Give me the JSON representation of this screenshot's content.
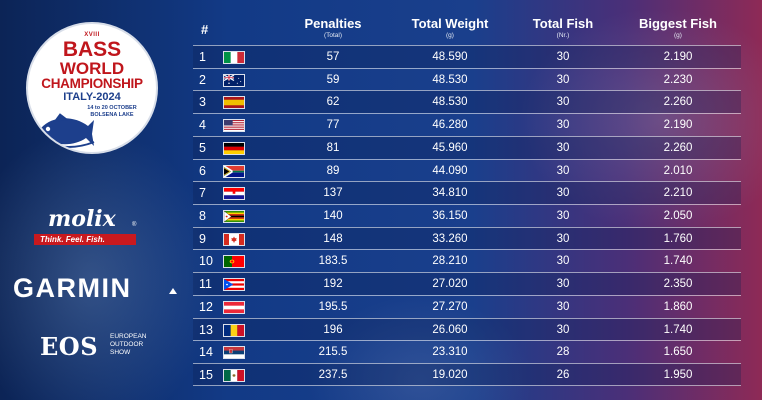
{
  "event": {
    "edition": "XVIII",
    "title_line1": "BASS",
    "title_line2": "WORLD",
    "title_line3": "CHAMPIONSHIP",
    "title_line4": "ITALY-2024",
    "dates": "14 to 20 OCTOBER",
    "venue": "BOLSENA LAKE"
  },
  "sponsors": {
    "molix": {
      "name": "molix",
      "registered": "®",
      "tagline": "Think. Feel. Fish."
    },
    "garmin": {
      "name": "GARMIN"
    },
    "eos": {
      "name": "EOS",
      "line1": "EUROPEAN",
      "line2": "OUTDOOR",
      "line3": "SHOW"
    }
  },
  "table": {
    "headers": {
      "rank": "#",
      "penalties": "Penalties",
      "penalties_unit": "(Total)",
      "total_weight": "Total Weight",
      "total_weight_unit": "(g)",
      "total_fish": "Total Fish",
      "total_fish_unit": "(Nr.)",
      "biggest_fish": "Biggest Fish",
      "biggest_fish_unit": "(g)"
    },
    "rows": [
      {
        "rank": "1",
        "flag": "italy-flag",
        "penalties": "57",
        "total_weight": "48.590",
        "total_fish": "30",
        "biggest_fish": "2.190"
      },
      {
        "rank": "2",
        "flag": "australia-flag",
        "penalties": "59",
        "total_weight": "48.530",
        "total_fish": "30",
        "biggest_fish": "2.230"
      },
      {
        "rank": "3",
        "flag": "spain-flag",
        "penalties": "62",
        "total_weight": "48.530",
        "total_fish": "30",
        "biggest_fish": "2.260"
      },
      {
        "rank": "4",
        "flag": "usa-flag",
        "penalties": "77",
        "total_weight": "46.280",
        "total_fish": "30",
        "biggest_fish": "2.190"
      },
      {
        "rank": "5",
        "flag": "germany-flag",
        "penalties": "81",
        "total_weight": "45.960",
        "total_fish": "30",
        "biggest_fish": "2.260"
      },
      {
        "rank": "6",
        "flag": "south-africa-flag",
        "penalties": "89",
        "total_weight": "44.090",
        "total_fish": "30",
        "biggest_fish": "2.010"
      },
      {
        "rank": "7",
        "flag": "croatia-flag",
        "penalties": "137",
        "total_weight": "34.810",
        "total_fish": "30",
        "biggest_fish": "2.210"
      },
      {
        "rank": "8",
        "flag": "zimbabwe-flag",
        "penalties": "140",
        "total_weight": "36.150",
        "total_fish": "30",
        "biggest_fish": "2.050"
      },
      {
        "rank": "9",
        "flag": "canada-flag",
        "penalties": "148",
        "total_weight": "33.260",
        "total_fish": "30",
        "biggest_fish": "1.760"
      },
      {
        "rank": "10",
        "flag": "portugal-flag",
        "penalties": "183.5",
        "total_weight": "28.210",
        "total_fish": "30",
        "biggest_fish": "1.740"
      },
      {
        "rank": "11",
        "flag": "puerto-rico-flag",
        "penalties": "192",
        "total_weight": "27.020",
        "total_fish": "30",
        "biggest_fish": "2.350"
      },
      {
        "rank": "12",
        "flag": "austria-flag",
        "penalties": "195.5",
        "total_weight": "27.270",
        "total_fish": "30",
        "biggest_fish": "1.860"
      },
      {
        "rank": "13",
        "flag": "romania-flag",
        "penalties": "196",
        "total_weight": "26.060",
        "total_fish": "30",
        "biggest_fish": "1.740"
      },
      {
        "rank": "14",
        "flag": "serbia-flag",
        "penalties": "215.5",
        "total_weight": "23.310",
        "total_fish": "28",
        "biggest_fish": "1.650"
      },
      {
        "rank": "15",
        "flag": "mexico-flag",
        "penalties": "237.5",
        "total_weight": "19.020",
        "total_fish": "26",
        "biggest_fish": "1.950"
      }
    ]
  },
  "colors": {
    "background_start": "#0c2456",
    "background_end": "#8e2a56",
    "logo_red": "#c0161c",
    "logo_blue": "#1d3f8c",
    "molix_red": "#c9191e"
  }
}
